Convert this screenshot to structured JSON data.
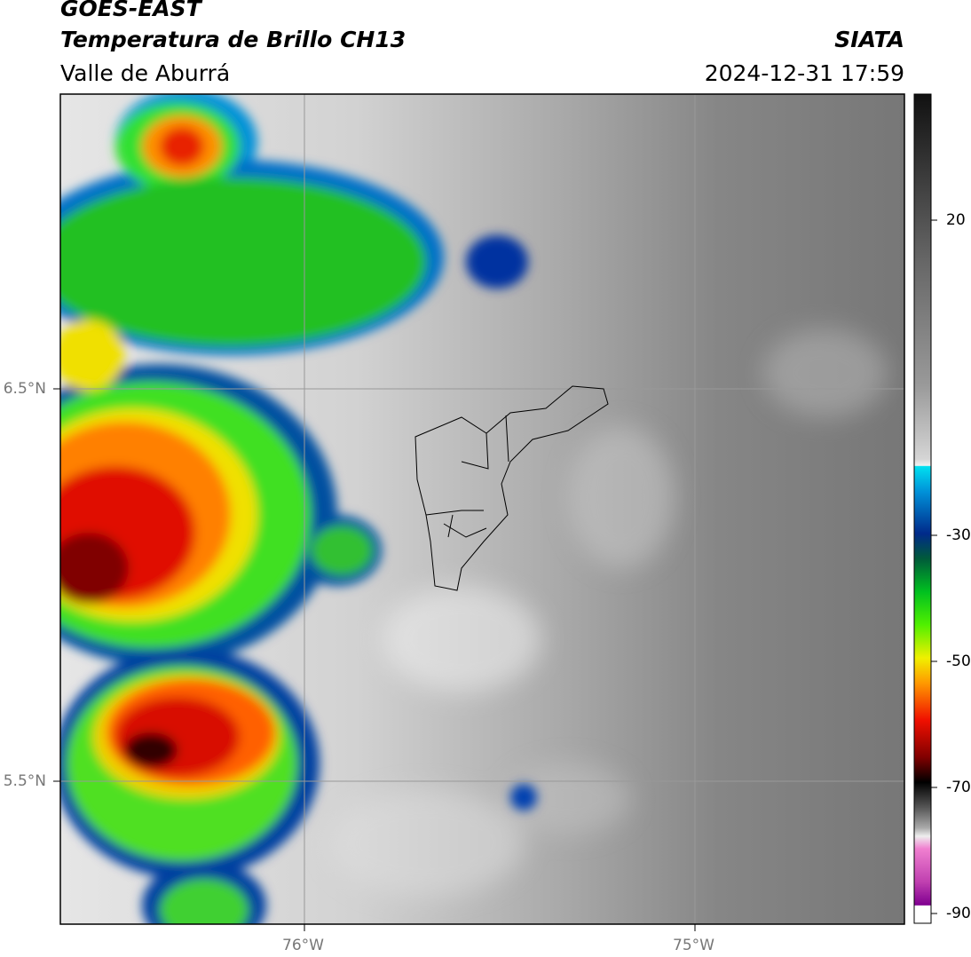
{
  "header": {
    "title": "GOES-EAST",
    "subtitle": "Temperatura de Brillo CH13",
    "region": "Valle de Aburrá",
    "source": "SIATA",
    "datetime": "2024-12-31 17:59"
  },
  "map": {
    "lat_labels": [
      "6.5°N",
      "5.5°N"
    ],
    "lon_labels": [
      "76°W",
      "75°W"
    ]
  },
  "colorbar": {
    "ticks": [
      20,
      -30,
      -50,
      -70,
      -90
    ]
  }
}
